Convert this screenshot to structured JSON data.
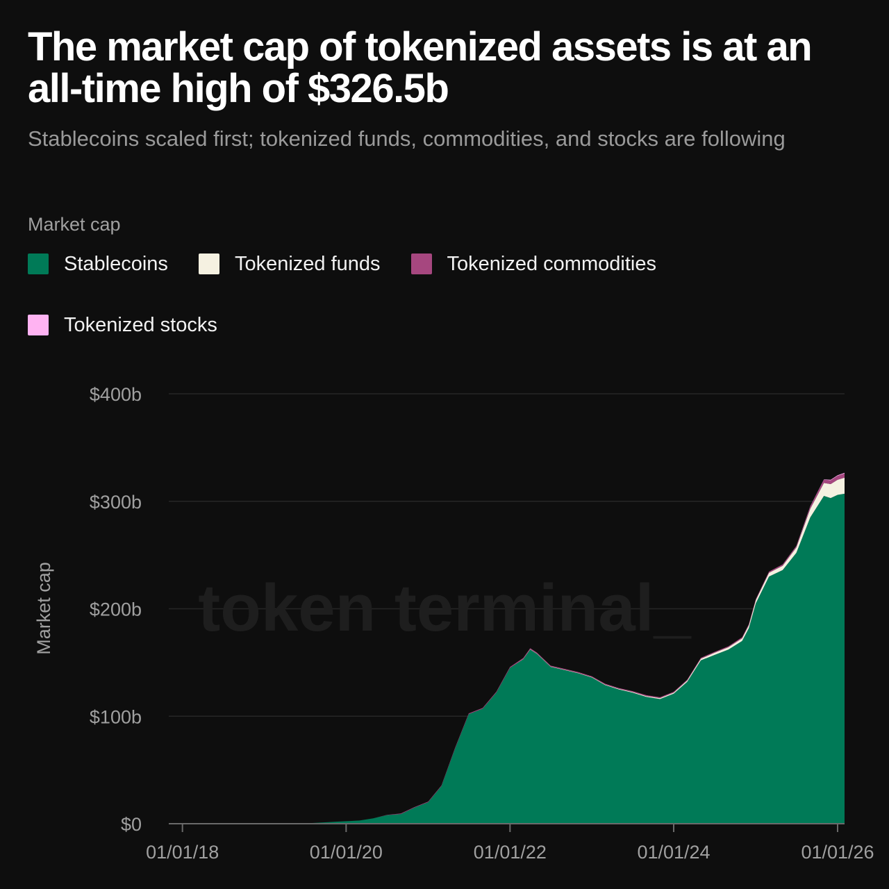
{
  "header": {
    "title": "The market cap of tokenized assets is at an all-time high of $326.5b",
    "subtitle": "Stablecoins scaled first; tokenized funds, commodities, and stocks are following"
  },
  "legend": {
    "title": "Market cap",
    "items": [
      {
        "label": "Stablecoins",
        "color": "#007a57"
      },
      {
        "label": "Tokenized funds",
        "color": "#f5f1e1"
      },
      {
        "label": "Tokenized commodities",
        "color": "#a6477f"
      },
      {
        "label": "Tokenized stocks",
        "color": "#ffb3f2"
      }
    ]
  },
  "watermark": "token terminal_",
  "chart_data": {
    "type": "area",
    "stacked": true,
    "title": "The market cap of tokenized assets is at an all-time high of $326.5b",
    "ylabel": "Market cap",
    "ylim": [
      0,
      400
    ],
    "yunit": "billion USD",
    "y_ticks": [
      0,
      100,
      200,
      300,
      400
    ],
    "y_tick_labels": [
      "$0",
      "$100b",
      "$200b",
      "$300b",
      "$400b"
    ],
    "x_ticks": [
      "2018-01-01",
      "2020-01-01",
      "2022-01-01",
      "2024-01-01",
      "2026-01-01"
    ],
    "x_tick_labels": [
      "01/01/18",
      "01/01/20",
      "01/01/22",
      "01/01/24",
      "01/01/26"
    ],
    "x_range": [
      "2017-11-01",
      "2026-02-01"
    ],
    "grid": "horizontal",
    "legend_position": "top-left",
    "x": [
      "2017-11-01",
      "2019-06-01",
      "2019-09-01",
      "2019-12-01",
      "2020-03-01",
      "2020-05-01",
      "2020-07-01",
      "2020-09-01",
      "2020-11-01",
      "2021-01-01",
      "2021-03-01",
      "2021-05-01",
      "2021-07-01",
      "2021-09-01",
      "2021-11-01",
      "2022-01-01",
      "2022-03-01",
      "2022-04-01",
      "2022-05-01",
      "2022-07-01",
      "2022-09-01",
      "2022-11-01",
      "2023-01-01",
      "2023-03-01",
      "2023-05-01",
      "2023-07-01",
      "2023-09-01",
      "2023-11-01",
      "2024-01-01",
      "2024-03-01",
      "2024-05-01",
      "2024-07-01",
      "2024-09-01",
      "2024-11-01",
      "2024-12-01",
      "2025-01-01",
      "2025-03-01",
      "2025-05-01",
      "2025-07-01",
      "2025-09-01",
      "2025-11-01",
      "2025-12-01",
      "2026-01-01",
      "2026-02-01"
    ],
    "series": [
      {
        "name": "Stablecoins",
        "color": "#007a57",
        "values": [
          0,
          0,
          1,
          2,
          3,
          5,
          8,
          9,
          15,
          20,
          35,
          70,
          102,
          107,
          122,
          145,
          153,
          162,
          158,
          146,
          143,
          140,
          136,
          129,
          125,
          122,
          118,
          116,
          121,
          132,
          152,
          157,
          162,
          170,
          182,
          205,
          230,
          236,
          252,
          285,
          305,
          303,
          306,
          307
        ]
      },
      {
        "name": "Tokenized funds",
        "color": "#f5f1e1",
        "values": [
          0,
          0,
          0,
          0,
          0,
          0,
          0,
          0,
          0,
          0,
          0,
          0,
          0,
          0,
          0,
          0,
          0.2,
          0.3,
          0.3,
          0.3,
          0.3,
          0.3,
          0.4,
          0.5,
          0.5,
          0.6,
          0.8,
          0.9,
          1,
          1.2,
          1.5,
          2,
          2.2,
          2.5,
          2.7,
          3,
          3.5,
          4,
          5,
          8,
          12,
          13,
          14,
          15
        ]
      },
      {
        "name": "Tokenized commodities",
        "color": "#a6477f",
        "values": [
          0,
          0,
          0,
          0,
          0,
          0,
          0.2,
          0.5,
          0.5,
          0.6,
          0.6,
          0.7,
          0.7,
          0.8,
          0.8,
          0.9,
          1,
          1,
          0.9,
          0.8,
          0.8,
          0.8,
          0.8,
          0.8,
          0.8,
          0.8,
          0.8,
          0.8,
          0.8,
          0.8,
          0.9,
          0.9,
          0.9,
          1,
          1,
          1,
          1.1,
          1.2,
          1.3,
          2,
          3,
          3.5,
          3.7,
          3.9
        ]
      },
      {
        "name": "Tokenized stocks",
        "color": "#ffb3f2",
        "values": [
          0,
          0,
          0,
          0,
          0,
          0,
          0,
          0,
          0,
          0,
          0,
          0,
          0,
          0,
          0,
          0,
          0,
          0,
          0,
          0,
          0,
          0,
          0,
          0,
          0,
          0,
          0,
          0,
          0,
          0,
          0,
          0,
          0,
          0,
          0,
          0,
          0,
          0.1,
          0.2,
          0.3,
          0.4,
          0.5,
          0.5,
          0.6
        ]
      }
    ]
  }
}
